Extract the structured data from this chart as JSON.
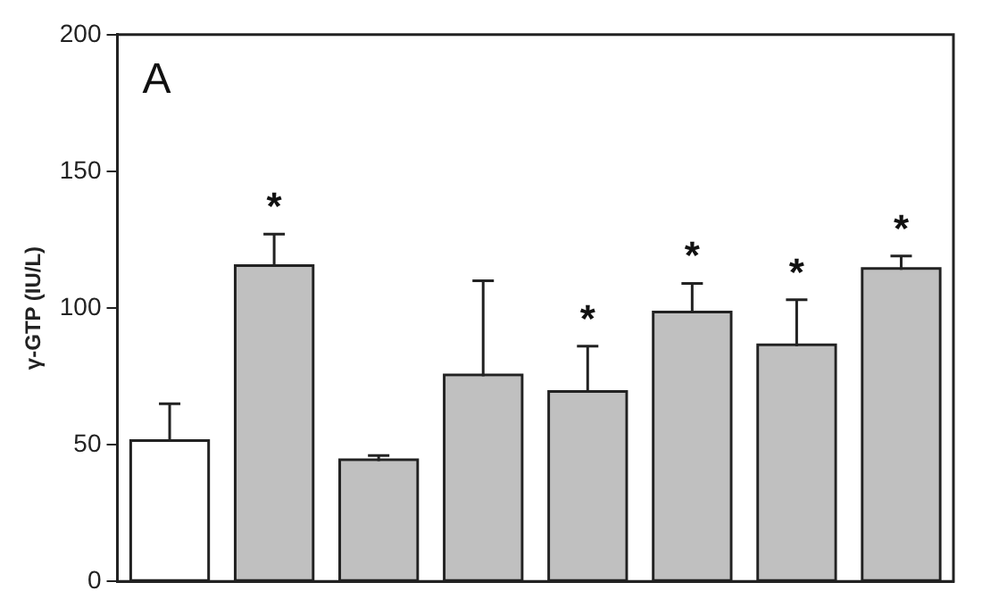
{
  "chart_data": {
    "type": "bar",
    "ylabel": "γ-GTP (IU/L)",
    "annotations": [
      "A"
    ],
    "categories": [
      null,
      null,
      null,
      null,
      null,
      null,
      null,
      null
    ],
    "values": [
      51,
      115,
      44,
      75,
      69,
      98,
      86,
      114
    ],
    "colors": [
      "#ffffff",
      "#c0c0c0",
      "#c0c0c0",
      "#c0c0c0",
      "#c0c0c0",
      "#c0c0c0",
      "#c0c0c0",
      "#c0c0c0"
    ],
    "errors": [
      [
        51,
        65
      ],
      [
        115,
        127
      ],
      [
        44,
        46
      ],
      [
        75,
        110
      ],
      [
        69,
        86
      ],
      [
        98,
        109
      ],
      [
        86,
        103
      ],
      [
        114,
        119
      ]
    ],
    "value_labels": [
      null,
      "*",
      null,
      null,
      "*",
      "*",
      "*",
      "*"
    ],
    "ylim": [
      0,
      200
    ],
    "yticks": [
      0,
      50,
      100,
      150,
      200
    ],
    "tick_labels": "y",
    "grid": false,
    "legend": false
  }
}
